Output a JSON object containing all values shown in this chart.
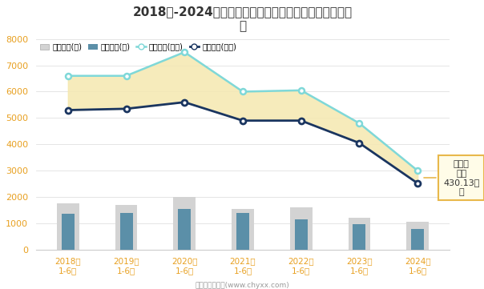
{
  "title": "2018年-2024年四川省全部用地土地供应与成交情况统计\n图",
  "years": [
    "2018年\n1-6月",
    "2019年\n1-6月",
    "2020年\n1-6月",
    "2021年\n1-6月",
    "2022年\n1-6月",
    "2023年\n1-6月",
    "2024年\n1-6月"
  ],
  "chuzong": [
    1750,
    1700,
    2000,
    1550,
    1600,
    1200,
    1050
  ],
  "chengjiao_zong": [
    1350,
    1380,
    1550,
    1400,
    1150,
    970,
    790
  ],
  "chuzong_color": "#d3d3d3",
  "chengjiao_zong_color": "#5b8fa8",
  "chuzong_mianji": [
    6600,
    6600,
    7500,
    6000,
    6050,
    4800,
    3000
  ],
  "chengjiao_mianji": [
    5300,
    5350,
    5600,
    4900,
    4900,
    4050,
    2520
  ],
  "chuzong_mianji_color": "#7fd8d8",
  "chengjiao_mianji_color": "#1a3560",
  "fill_color": "#f5e8b0",
  "ylim": [
    0,
    8000
  ],
  "yticks": [
    0,
    1000,
    2000,
    3000,
    4000,
    5000,
    6000,
    7000,
    8000
  ],
  "annotation_text": "未成交\n面积\n430.13万\n㎡",
  "annotation_border_color": "#e8b84b",
  "annotation_bg_color": "#fffce8",
  "footer": "制图：智研咨询(www.chyxx.com)",
  "legend_labels": [
    "出让宗数(宗)",
    "成交宗数(宗)",
    "出让面积(万㎡)",
    "成交面积(万㎡)"
  ],
  "bg_color": "#ffffff",
  "tick_color": "#e8a020",
  "title_color": "#333333"
}
